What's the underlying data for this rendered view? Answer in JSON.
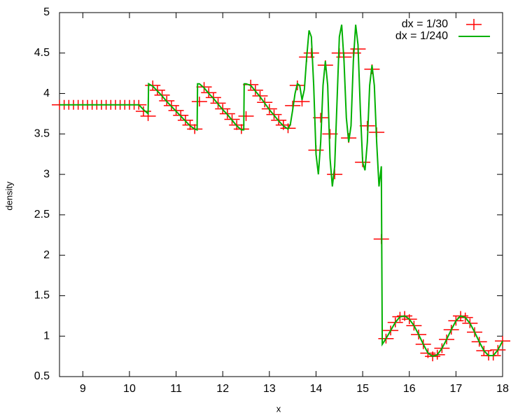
{
  "chart_data": {
    "type": "scatter-line",
    "xlabel": "x",
    "ylabel": "density",
    "xlim": [
      8.5,
      18
    ],
    "xticks": [
      9,
      10,
      11,
      12,
      13,
      14,
      15,
      16,
      17,
      18
    ],
    "ylim": [
      0.5,
      5
    ],
    "yticks": [
      0.5,
      1,
      1.5,
      2,
      2.5,
      3,
      3.5,
      4,
      4.5,
      5
    ],
    "legend": "top-right",
    "series": [
      {
        "name": "dx = 1/30",
        "color": "#ff0000",
        "mode": "points",
        "x": [
          8.5,
          8.6,
          8.7,
          8.8,
          8.9,
          9.0,
          9.1,
          9.2,
          9.3,
          9.4,
          9.5,
          9.6,
          9.7,
          9.8,
          9.9,
          10.0,
          10.1,
          10.2,
          10.3,
          10.4,
          10.5,
          10.6,
          10.7,
          10.8,
          10.9,
          11.0,
          11.1,
          11.2,
          11.3,
          11.4,
          11.5,
          11.6,
          11.7,
          11.8,
          11.9,
          12.0,
          12.1,
          12.2,
          12.3,
          12.4,
          12.5,
          12.6,
          12.7,
          12.8,
          12.9,
          13.0,
          13.1,
          13.2,
          13.3,
          13.4,
          13.5,
          13.6,
          13.7,
          13.8,
          13.9,
          14.0,
          14.1,
          14.2,
          14.3,
          14.4,
          14.5,
          14.6,
          14.7,
          14.8,
          14.9,
          15.0,
          15.1,
          15.2,
          15.3,
          15.4,
          15.5,
          15.6,
          15.7,
          15.8,
          15.9,
          16.0,
          16.1,
          16.2,
          16.3,
          16.4,
          16.5,
          16.6,
          16.7,
          16.8,
          16.9,
          17.0,
          17.1,
          17.2,
          17.3,
          17.4,
          17.5,
          17.6,
          17.7,
          17.8,
          17.9,
          18.0
        ],
        "values": [
          3.86,
          3.86,
          3.86,
          3.86,
          3.86,
          3.86,
          3.86,
          3.86,
          3.86,
          3.86,
          3.86,
          3.86,
          3.86,
          3.86,
          3.86,
          3.86,
          3.86,
          3.86,
          3.78,
          3.72,
          4.1,
          4.04,
          3.98,
          3.91,
          3.85,
          3.79,
          3.73,
          3.67,
          3.61,
          3.56,
          3.9,
          4.08,
          4.01,
          3.95,
          3.88,
          3.81,
          3.75,
          3.68,
          3.61,
          3.56,
          3.72,
          4.11,
          4.04,
          3.97,
          3.89,
          3.81,
          3.74,
          3.67,
          3.61,
          3.57,
          3.85,
          4.1,
          3.9,
          4.45,
          4.5,
          3.3,
          3.7,
          4.35,
          3.5,
          3.0,
          4.5,
          4.45,
          3.45,
          4.5,
          4.55,
          3.15,
          3.6,
          4.3,
          3.52,
          2.2,
          0.97,
          1.07,
          1.17,
          1.24,
          1.25,
          1.21,
          1.13,
          1.02,
          0.9,
          0.79,
          0.75,
          0.77,
          0.85,
          0.96,
          1.08,
          1.19,
          1.25,
          1.23,
          1.16,
          1.05,
          0.93,
          0.82,
          0.76,
          0.76,
          0.83,
          0.94
        ]
      },
      {
        "name": "dx = 1/240",
        "color": "#00b000",
        "mode": "line",
        "x": [
          8.5,
          8.6,
          8.7,
          8.8,
          8.9,
          9.0,
          9.1,
          9.2,
          9.3,
          9.4,
          9.5,
          9.6,
          9.7,
          9.8,
          9.9,
          10.0,
          10.1,
          10.2,
          10.3,
          10.4,
          10.41,
          10.5,
          10.6,
          10.7,
          10.8,
          10.9,
          11.0,
          11.1,
          11.2,
          11.3,
          11.4,
          11.45,
          11.46,
          11.5,
          11.6,
          11.7,
          11.8,
          11.9,
          12.0,
          12.1,
          12.2,
          12.3,
          12.4,
          12.45,
          12.46,
          12.5,
          12.6,
          12.7,
          12.8,
          12.9,
          13.0,
          13.1,
          13.2,
          13.3,
          13.4,
          13.45,
          13.5,
          13.55,
          13.6,
          13.65,
          13.7,
          13.75,
          13.8,
          13.85,
          13.9,
          13.95,
          14.0,
          14.05,
          14.1,
          14.15,
          14.2,
          14.25,
          14.3,
          14.35,
          14.4,
          14.45,
          14.5,
          14.55,
          14.6,
          14.65,
          14.7,
          14.75,
          14.8,
          14.85,
          14.9,
          14.95,
          15.0,
          15.05,
          15.1,
          15.15,
          15.2,
          15.25,
          15.3,
          15.35,
          15.4,
          15.42,
          15.5,
          15.6,
          15.7,
          15.8,
          15.9,
          16.0,
          16.1,
          16.2,
          16.3,
          16.4,
          16.5,
          16.6,
          16.7,
          16.8,
          16.9,
          17.0,
          17.1,
          17.2,
          17.3,
          17.4,
          17.5,
          17.6,
          17.7,
          17.8,
          17.9,
          18.0
        ],
        "values": [
          3.86,
          3.86,
          3.86,
          3.86,
          3.86,
          3.86,
          3.86,
          3.86,
          3.86,
          3.86,
          3.86,
          3.86,
          3.86,
          3.86,
          3.86,
          3.86,
          3.86,
          3.86,
          3.8,
          3.75,
          4.12,
          4.09,
          4.03,
          3.97,
          3.9,
          3.84,
          3.78,
          3.72,
          3.66,
          3.6,
          3.56,
          3.55,
          4.12,
          4.12,
          4.07,
          4.0,
          3.94,
          3.87,
          3.8,
          3.74,
          3.67,
          3.6,
          3.55,
          3.55,
          4.12,
          4.12,
          4.1,
          4.03,
          3.96,
          3.88,
          3.8,
          3.73,
          3.66,
          3.6,
          3.56,
          3.62,
          3.8,
          4.0,
          4.12,
          4.1,
          3.92,
          4.05,
          4.45,
          4.78,
          4.7,
          4.1,
          3.25,
          3.0,
          3.4,
          4.1,
          4.4,
          4.1,
          3.2,
          2.85,
          3.1,
          3.9,
          4.7,
          4.85,
          4.4,
          3.7,
          3.4,
          3.6,
          4.4,
          4.85,
          4.6,
          3.8,
          3.15,
          3.05,
          3.4,
          4.1,
          4.35,
          4.1,
          3.4,
          2.85,
          3.1,
          0.9,
          0.97,
          1.07,
          1.17,
          1.24,
          1.25,
          1.21,
          1.13,
          1.02,
          0.9,
          0.79,
          0.75,
          0.77,
          0.85,
          0.96,
          1.08,
          1.19,
          1.25,
          1.23,
          1.16,
          1.05,
          0.93,
          0.82,
          0.76,
          0.76,
          0.83,
          0.94
        ]
      }
    ]
  }
}
